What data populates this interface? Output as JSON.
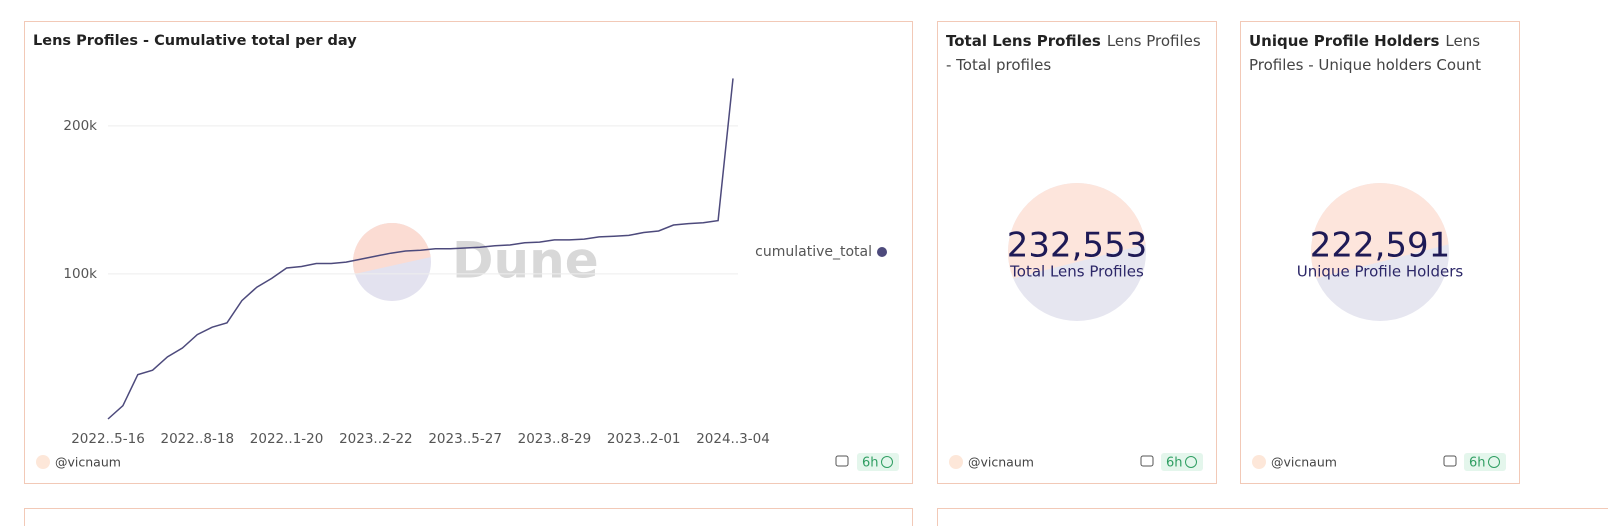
{
  "chart_data": {
    "type": "line",
    "title": "Lens Profiles - Cumulative total per day",
    "watermark": "Dune",
    "categories": [
      "2022..5-16",
      null,
      null,
      null,
      null,
      null,
      "2022..8-18",
      null,
      null,
      null,
      null,
      null,
      "2022..1-20",
      null,
      null,
      null,
      null,
      null,
      "2023..2-22",
      null,
      null,
      null,
      null,
      null,
      "2023..5-27",
      null,
      null,
      null,
      null,
      null,
      "2023..8-29",
      null,
      null,
      null,
      null,
      null,
      "2023..2-01",
      null,
      null,
      null,
      null,
      null,
      "2024..3-04"
    ],
    "series": [
      {
        "name": "cumulative_total",
        "color": "#4d4a7c",
        "values": [
          2000,
          11000,
          32000,
          35000,
          44000,
          50000,
          59000,
          64000,
          67000,
          82000,
          91000,
          97000,
          104000,
          105000,
          107000,
          107000,
          108000,
          110000,
          112000,
          114000,
          115500,
          116000,
          117000,
          117000,
          117500,
          118000,
          119000,
          119500,
          121000,
          121500,
          123000,
          123000,
          123500,
          125000,
          125500,
          126000,
          128000,
          129000,
          133000,
          134000,
          134500,
          136000,
          232000
        ]
      }
    ],
    "ylim": [
      0,
      235000
    ],
    "yticks": [
      {
        "value": 100000,
        "label": "100k"
      },
      {
        "value": 200000,
        "label": "200k"
      }
    ],
    "grid": true,
    "legend": "right"
  },
  "chart_footer": {
    "author": "@vicnaum",
    "age": "6h"
  },
  "counters": [
    {
      "title": "Total Lens Profiles",
      "subtitle": "Lens Profiles - Total profiles",
      "value": "232,553",
      "label": "Total Lens Profiles",
      "author": "@vicnaum",
      "age": "6h"
    },
    {
      "title": "Unique Profile Holders",
      "subtitle": "Lens Profiles - Unique holders Count",
      "value": "222,591",
      "label": "Unique Profile Holders",
      "author": "@vicnaum",
      "age": "6h"
    }
  ]
}
